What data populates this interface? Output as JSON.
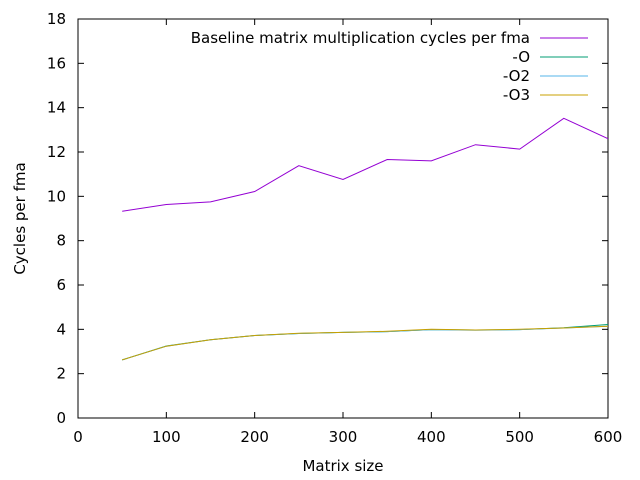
{
  "chart_data": {
    "type": "line",
    "title": "",
    "xlabel": "Matrix size",
    "ylabel": "Cycles per fma",
    "xlim": [
      0,
      600
    ],
    "ylim": [
      0,
      18
    ],
    "xticks": [
      0,
      100,
      200,
      300,
      400,
      500,
      600
    ],
    "yticks": [
      0,
      2,
      4,
      6,
      8,
      10,
      12,
      14,
      16,
      18
    ],
    "grid": false,
    "legend_position": "top-right",
    "x": [
      50,
      100,
      150,
      200,
      250,
      300,
      350,
      400,
      450,
      500,
      550,
      600
    ],
    "series": [
      {
        "name": "Baseline matrix multiplication cycles per fma",
        "color": "#9400d3",
        "values": [
          9.33,
          9.63,
          9.75,
          10.22,
          11.38,
          10.76,
          11.66,
          11.6,
          12.33,
          12.13,
          13.52,
          12.6
        ]
      },
      {
        "name": "-O",
        "color": "#009e73",
        "values": [
          2.62,
          3.25,
          3.53,
          3.72,
          3.81,
          3.86,
          3.9,
          3.99,
          3.97,
          3.99,
          4.07,
          4.22
        ]
      },
      {
        "name": "-O2",
        "color": "#56b4e9",
        "values": [
          2.62,
          3.24,
          3.53,
          3.72,
          3.81,
          3.86,
          3.9,
          3.99,
          3.96,
          3.99,
          4.06,
          4.14
        ]
      },
      {
        "name": "-O3",
        "color": "#c8a000",
        "values": [
          2.62,
          3.24,
          3.53,
          3.72,
          3.82,
          3.86,
          3.91,
          4.0,
          3.97,
          4.0,
          4.06,
          4.14
        ]
      }
    ]
  }
}
